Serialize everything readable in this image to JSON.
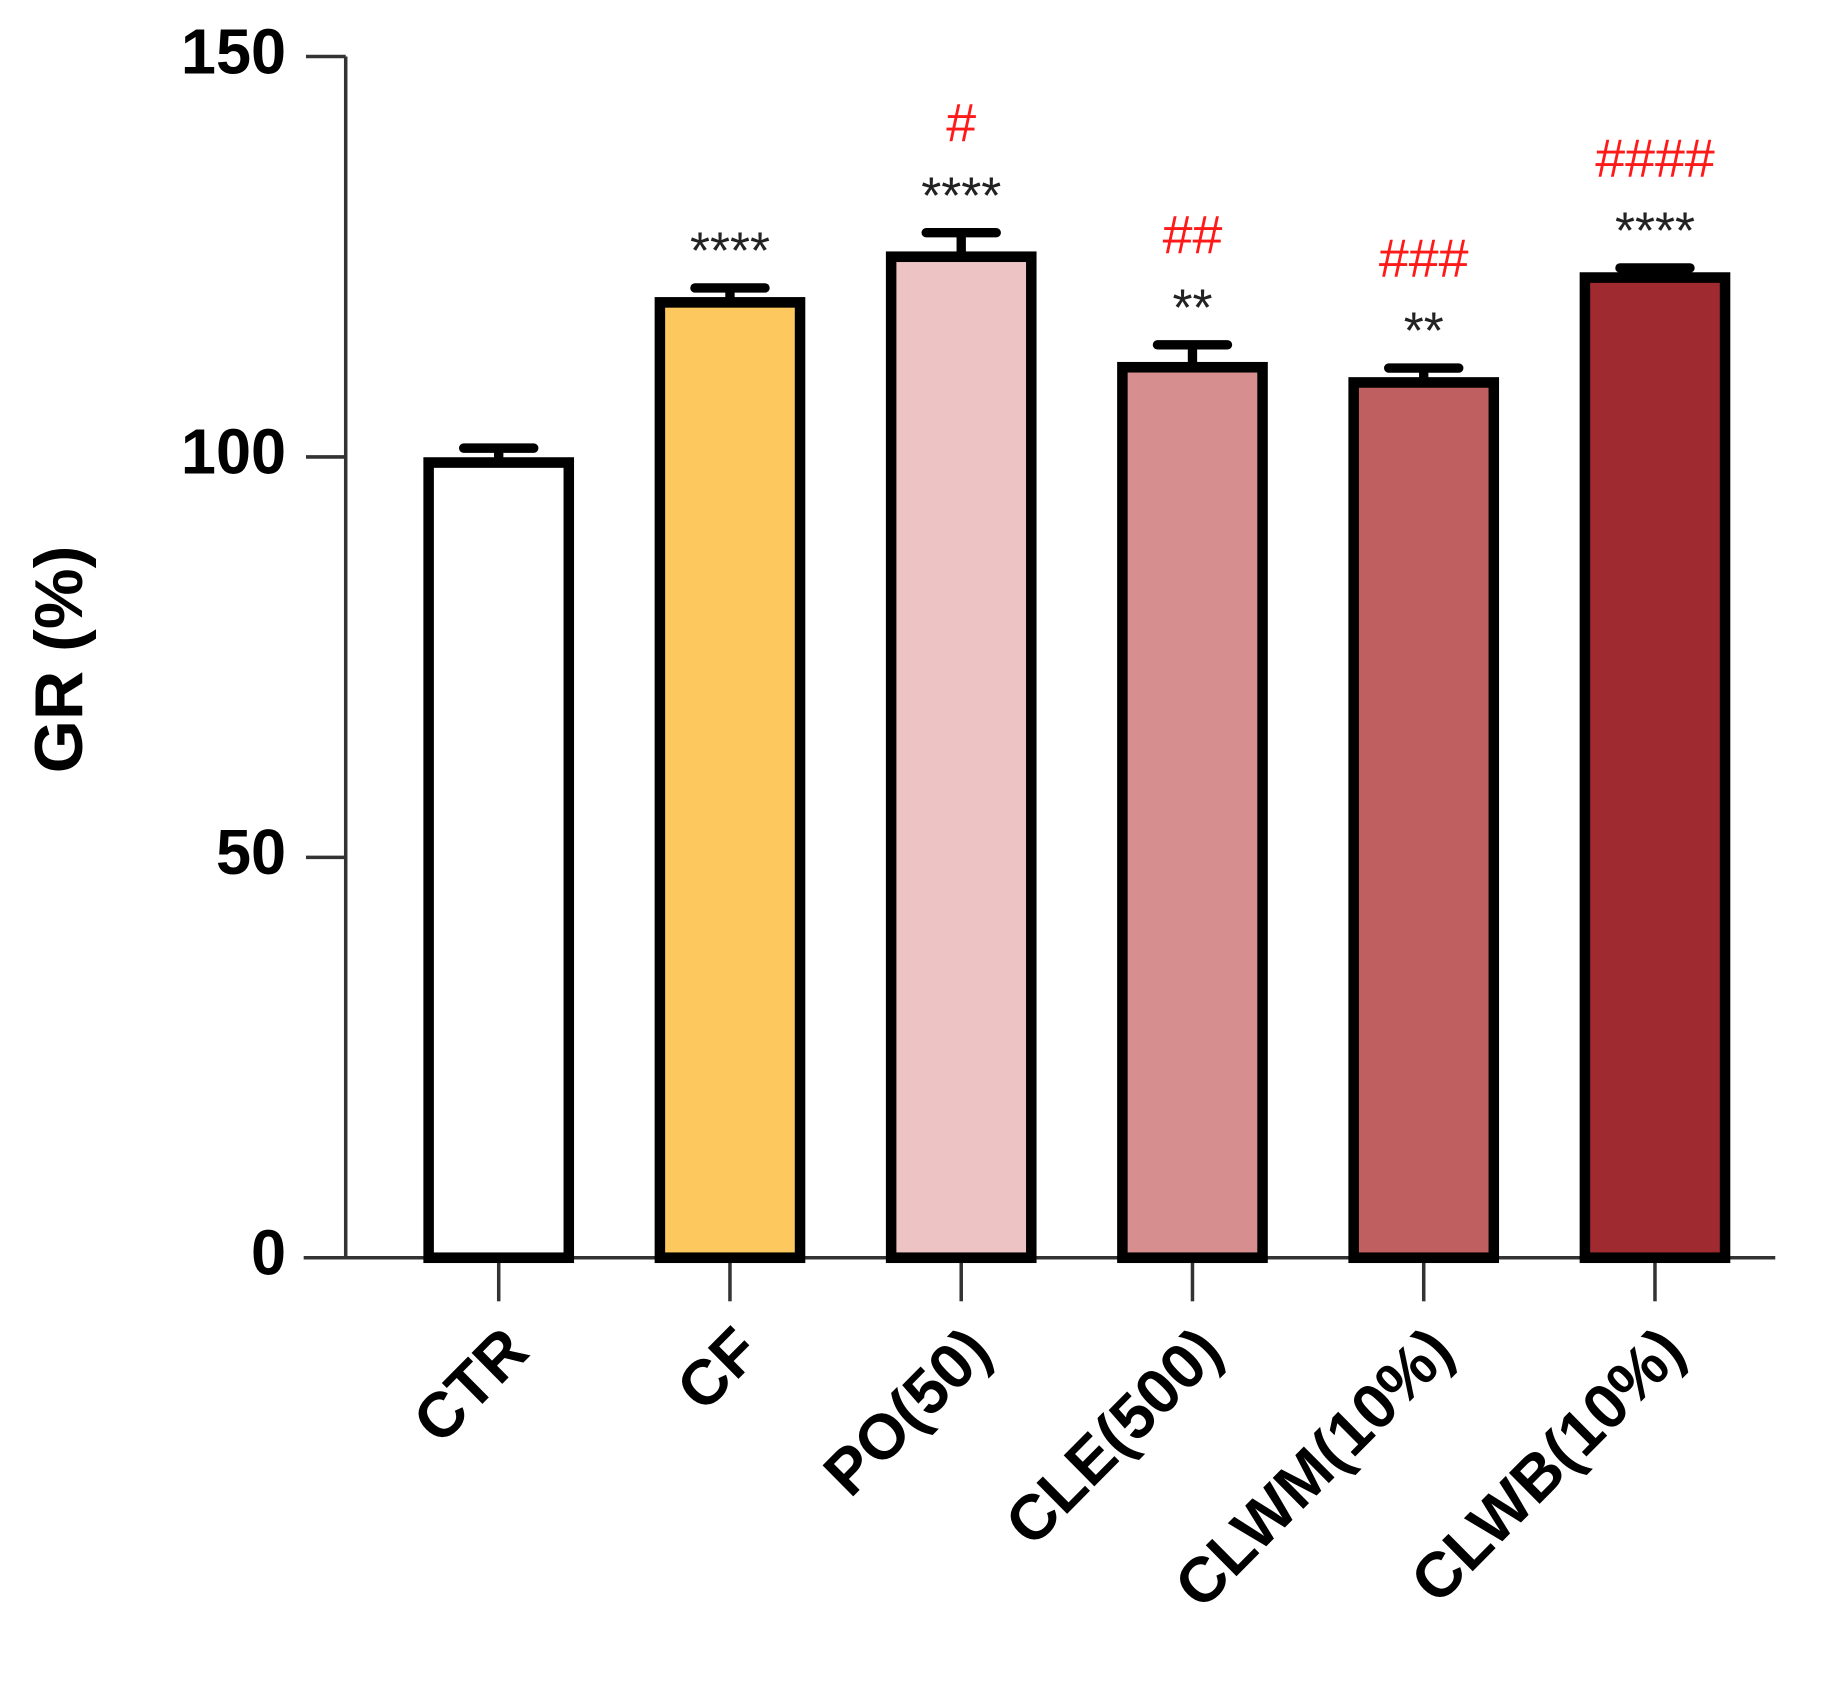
{
  "chart_data": {
    "type": "bar",
    "y_label": "GR (%)",
    "categories": [
      "CTR",
      "CF",
      "PO(50)",
      "CLE(500)",
      "CLWM(10%)",
      "CLWB(10%)"
    ],
    "values": [
      99.3,
      119.3,
      125,
      111.2,
      109.3,
      122.4
    ],
    "errors": [
      1.8,
      1.8,
      3,
      2.8,
      1.8,
      1.2
    ],
    "colors": [
      "#ffffff",
      "#fdc95f",
      "#eec3c3",
      "#d68e8e",
      "#c05f5f",
      "#9f2b30"
    ],
    "stars": [
      null,
      "****",
      "****",
      "**",
      "**",
      "****"
    ],
    "hashes": [
      null,
      null,
      "#",
      "##",
      "###",
      "####"
    ],
    "star_color": "#222222",
    "hash_color": "#ff1a1a",
    "ylim": [
      0,
      150
    ],
    "yticks": [
      0,
      50,
      100,
      150
    ]
  }
}
